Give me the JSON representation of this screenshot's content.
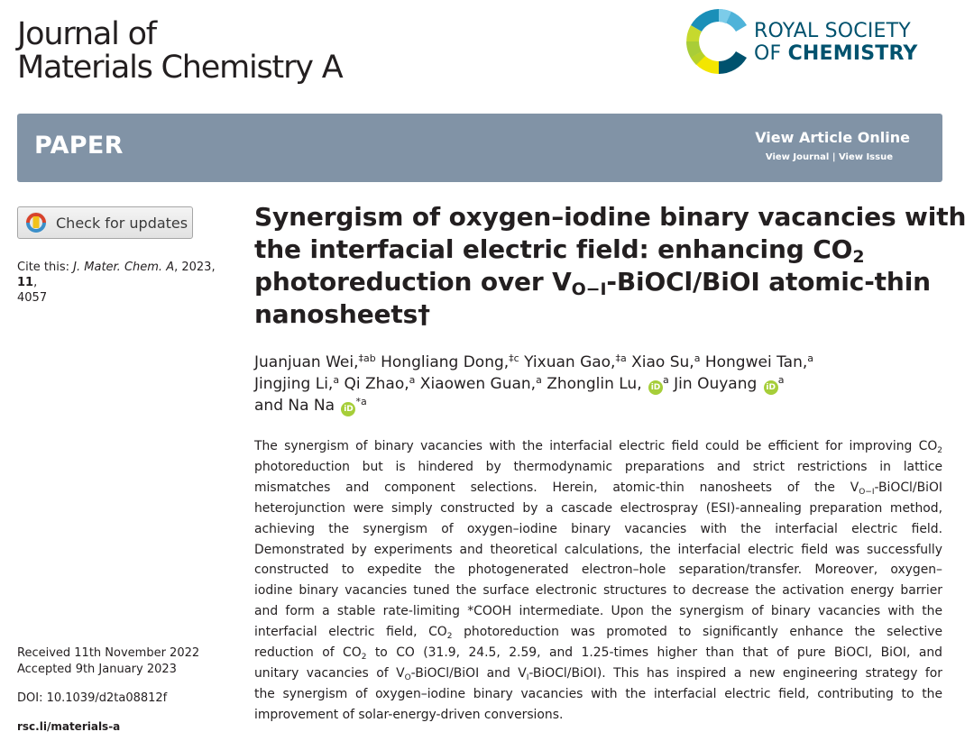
{
  "journal": {
    "line1": "Journal of",
    "line2": "Materials Chemistry A"
  },
  "publisher": {
    "line1": "ROYAL SOCIETY",
    "line2_prefix": "OF ",
    "line2_bold": "CHEMISTRY"
  },
  "banner": {
    "label": "PAPER",
    "view_online": "View Article Online",
    "view_journal": "View Journal",
    "separator": " | ",
    "view_issue": "View Issue"
  },
  "sidebar": {
    "check_updates": "Check for updates",
    "cite_prefix": "Cite this: ",
    "cite_journal": "J. Mater. Chem. A",
    "cite_year": ", 2023, ",
    "cite_volume": "11",
    "cite_page_sep": ",",
    "cite_page": "4057",
    "received": "Received 11th November 2022",
    "accepted": "Accepted 9th January 2023",
    "doi": "DOI: 10.1039/d2ta08812f",
    "rsc_link": "rsc.li/materials-a"
  },
  "article": {
    "title_l1": "Synergism of oxygen–iodine binary vacancies with",
    "title_l2a": "the interfacial electric field: enhancing CO",
    "title_l2_sub": "2",
    "title_l3a": "photoreduction over V",
    "title_l3_sub": "O−I",
    "title_l3b": "-BiOCl/BiOI atomic-thin",
    "title_l4": "nanosheets†"
  },
  "authors": {
    "a1": "Juanjuan Wei,",
    "a1_sup": "‡ab",
    "a2": " Hongliang Dong,",
    "a2_sup": "‡c",
    "a3": " Yixuan Gao,",
    "a3_sup": "‡a",
    "a4": " Xiao Su,",
    "a4_sup": "a",
    "a5": " Hongwei Tan,",
    "a5_sup": "a",
    "a6": "Jingjing Li,",
    "a6_sup": "a",
    "a7": " Qi Zhao,",
    "a7_sup": "a",
    "a8": " Xiaowen Guan,",
    "a8_sup": "a",
    "a9": " Zhonglin Lu,",
    "a9_sup": "a",
    "a10": " Jin Ouyang",
    "a10_sup": "a",
    "and": "and Na Na",
    "a11_sup": "*a",
    "orcid_label": "iD"
  },
  "abstract": {
    "l1a": "The synergism of binary vacancies with the interfacial electric field could be efficient for improving CO",
    "l1_sub": "2",
    "l2": "photoreduction but is hindered by thermodynamic preparations and strict restrictions in lattice",
    "l3a": "mismatches and component selections. Herein, atomic-thin nanosheets of the V",
    "l3_sub": "O−I",
    "l3b": "-BiOCl/BiOI",
    "l4": "heterojunction were simply constructed by a cascade electrospray (ESI)-annealing preparation method,",
    "l5": "achieving the synergism of oxygen–iodine binary vacancies with the interfacial electric field.",
    "l6": "Demonstrated by experiments and theoretical calculations, the interfacial electric field was successfully",
    "l7": "constructed to expedite the photogenerated electron–hole separation/transfer. Moreover, oxygen–",
    "l8": "iodine binary vacancies tuned the surface electronic structures to decrease the activation energy barrier",
    "l9": "and form a stable rate-limiting *COOH intermediate. Upon the synergism of binary vacancies with the",
    "l10a": "interfacial electric field, CO",
    "l10_sub": "2",
    "l10b": " photoreduction was promoted to significantly enhance the selective",
    "l11a": "reduction of CO",
    "l11_sub": "2",
    "l11b": " to CO (31.9, 24.5, 2.59, and 1.25-times higher than that of pure BiOCl, BiOI, and",
    "l12a": "unitary vacancies of V",
    "l12_sub1": "O",
    "l12b": "-BiOCl/BiOI and V",
    "l12_sub2": "I",
    "l12c": "-BiOCl/BiOI). This has inspired a new engineering strategy for",
    "l13": "the synergism of oxygen–iodine binary vacancies with the interfacial electric field, contributing to the",
    "l14": "improvement of solar-energy-driven conversions."
  },
  "colors": {
    "banner": "#8193a6",
    "rsc_blue": "#00526e",
    "orcid_green": "#a6ce39",
    "text": "#231f20"
  }
}
